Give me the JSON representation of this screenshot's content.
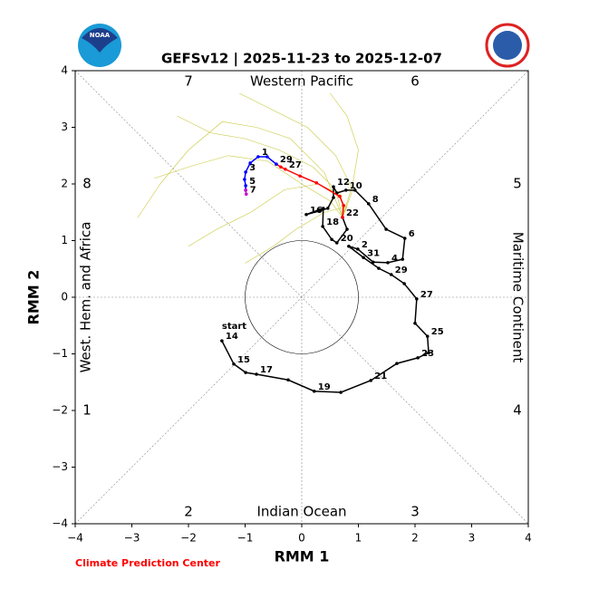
{
  "logo_text": "NOAA",
  "chart_data": {
    "type": "line",
    "title": "GEFSv12 | 2025-11-23 to 2025-12-07",
    "xlabel": "RMM 1",
    "ylabel": "RMM 2",
    "xlim": [
      -4,
      4
    ],
    "ylim": [
      -4,
      4
    ],
    "xticks": [
      {
        "value": -4,
        "label": "−4"
      },
      {
        "value": -3,
        "label": "−3"
      },
      {
        "value": -2,
        "label": "−2"
      },
      {
        "value": -1,
        "label": "−1"
      },
      0,
      1,
      2,
      3,
      4
    ],
    "yticks": [
      {
        "value": -4,
        "label": "−4"
      },
      {
        "value": -3,
        "label": "−3"
      },
      {
        "value": -2,
        "label": "−2"
      },
      {
        "value": -1,
        "label": "−1"
      },
      0,
      1,
      2,
      3,
      4
    ],
    "phase_labels": [
      "1",
      "2",
      "3",
      "4",
      "5",
      "6",
      "7",
      "8"
    ],
    "region_labels": {
      "left": "West. Hem. and Africa",
      "top": "Western Pacific",
      "right": "Maritime Continent",
      "bottom": "Indian Ocean"
    },
    "start_label": "start",
    "footer": "Climate Prediction Center",
    "ensemble_color": "#c8c83c",
    "ensemble": [
      {
        "x": [
          0.72,
          0.6,
          0.2,
          -0.4,
          -1.0,
          -1.6,
          -2.2
        ],
        "values": [
          1.41,
          1.9,
          2.3,
          2.6,
          2.8,
          2.9,
          3.2
        ]
      },
      {
        "x": [
          0.72,
          0.7,
          0.3,
          -0.3,
          -0.9,
          -1.5,
          -2.0
        ],
        "values": [
          1.41,
          1.8,
          2.0,
          1.9,
          1.5,
          1.2,
          0.9
        ]
      },
      {
        "x": [
          0.72,
          0.9,
          0.6,
          0.1,
          -0.5,
          -1.1
        ],
        "values": [
          1.41,
          1.9,
          2.5,
          3.0,
          3.3,
          3.6
        ]
      },
      {
        "x": [
          0.72,
          0.5,
          0.0,
          -0.6,
          -1.3,
          -2.0,
          -2.6
        ],
        "values": [
          1.41,
          1.7,
          2.0,
          2.4,
          2.5,
          2.3,
          2.1
        ]
      },
      {
        "x": [
          0.72,
          0.8,
          0.4,
          -0.1,
          -0.5,
          -1.0
        ],
        "values": [
          1.41,
          1.6,
          1.5,
          1.2,
          0.9,
          0.6
        ]
      },
      {
        "x": [
          0.72,
          0.9,
          1.0,
          0.8,
          0.5
        ],
        "values": [
          1.41,
          2.0,
          2.6,
          3.2,
          3.6
        ]
      },
      {
        "x": [
          0.72,
          0.4,
          -0.2,
          -0.8,
          -1.4,
          -2.0,
          -2.5,
          -2.9
        ],
        "values": [
          1.41,
          2.2,
          2.8,
          3.0,
          3.1,
          2.6,
          2.0,
          1.4
        ]
      }
    ],
    "series": [
      {
        "color": "#000000",
        "x": [
          -1.41,
          -1.2,
          -0.99,
          -0.8,
          -0.24,
          0.22,
          0.69,
          1.22,
          1.68,
          2.05,
          2.24,
          2.22,
          2.0,
          2.03,
          1.81,
          1.58,
          1.36,
          1.09,
          0.83,
          0.99,
          1.26,
          1.52,
          1.78,
          1.82,
          1.49,
          1.18,
          0.94,
          0.78,
          0.62,
          0.56,
          0.56,
          0.46,
          0.3,
          0.08,
          0.38,
          0.37,
          0.53,
          0.62,
          0.8,
          0.72
        ],
        "values": [
          -0.77,
          -1.18,
          -1.33,
          -1.36,
          -1.46,
          -1.66,
          -1.68,
          -1.47,
          -1.17,
          -1.07,
          -0.98,
          -0.69,
          -0.46,
          -0.03,
          0.24,
          0.4,
          0.51,
          0.7,
          0.9,
          0.85,
          0.62,
          0.61,
          0.67,
          1.04,
          1.2,
          1.65,
          1.89,
          1.89,
          1.84,
          1.95,
          1.76,
          1.57,
          1.52,
          1.46,
          1.57,
          1.25,
          1.02,
          0.96,
          1.2,
          1.41
        ],
        "point_labels": [
          "14",
          "15",
          null,
          "17",
          null,
          "19",
          null,
          "21",
          null,
          "23",
          null,
          "25",
          null,
          "27",
          null,
          "29",
          null,
          "31",
          null,
          "2",
          null,
          "4",
          null,
          "6",
          null,
          "8",
          null,
          "10",
          null,
          "12",
          null,
          null,
          null,
          "16",
          null,
          "18",
          null,
          "20",
          null,
          "22"
        ]
      },
      {
        "color": "#ff0000",
        "x": [
          0.72,
          0.74,
          0.67,
          0.26,
          -0.03,
          -0.29,
          -0.37,
          -0.45
        ],
        "values": [
          1.41,
          1.62,
          1.78,
          2.02,
          2.14,
          2.26,
          2.3,
          2.35
        ],
        "point_labels": [
          null,
          null,
          null,
          null,
          null,
          "27",
          null,
          null
        ]
      },
      {
        "color": "#0000ff",
        "x": [
          -0.45,
          -0.61,
          -0.77,
          -0.91,
          -0.99,
          -1.01,
          -0.99,
          -0.99
        ],
        "values": [
          2.35,
          2.48,
          2.48,
          2.37,
          2.21,
          2.08,
          1.97,
          1.89
        ],
        "point_labels": [
          "29",
          null,
          "1",
          null,
          "3",
          null,
          "5",
          null
        ]
      },
      {
        "color": "#cc00cc",
        "x": [
          -0.99,
          -0.98
        ],
        "values": [
          1.89,
          1.82
        ],
        "point_labels": [
          null,
          "7"
        ]
      }
    ]
  }
}
